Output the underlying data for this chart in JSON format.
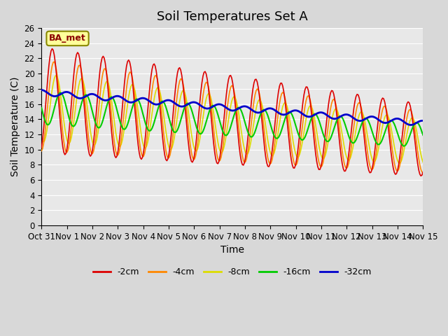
{
  "title": "Soil Temperatures Set A",
  "xlabel": "Time",
  "ylabel": "Soil Temperature (C)",
  "ylim": [
    0,
    26
  ],
  "yticks": [
    0,
    2,
    4,
    6,
    8,
    10,
    12,
    14,
    16,
    18,
    20,
    22,
    24,
    26
  ],
  "xtick_labels": [
    "Oct 31",
    "Nov 1",
    "Nov 2",
    "Nov 3",
    "Nov 4",
    "Nov 5",
    "Nov 6",
    "Nov 7",
    "Nov 8",
    "Nov 9",
    "Nov 10",
    "Nov 11",
    "Nov 12",
    "Nov 13",
    "Nov 14",
    "Nov 15"
  ],
  "legend_labels": [
    "-2cm",
    "-4cm",
    "-8cm",
    "-16cm",
    "-32cm"
  ],
  "legend_colors": [
    "#dd0000",
    "#ff8800",
    "#dddd00",
    "#00cc00",
    "#0000cc"
  ],
  "line_widths": [
    1.2,
    1.2,
    1.2,
    1.5,
    2.0
  ],
  "plot_bg_color": "#e8e8e8",
  "fig_bg_color": "#d8d8d8",
  "grid_color": "#ffffff",
  "annotation_text": "BA_met",
  "annotation_bg": "#ffff99",
  "annotation_border": "#888800",
  "title_fontsize": 13,
  "axis_label_fontsize": 10,
  "tick_fontsize": 8.5
}
